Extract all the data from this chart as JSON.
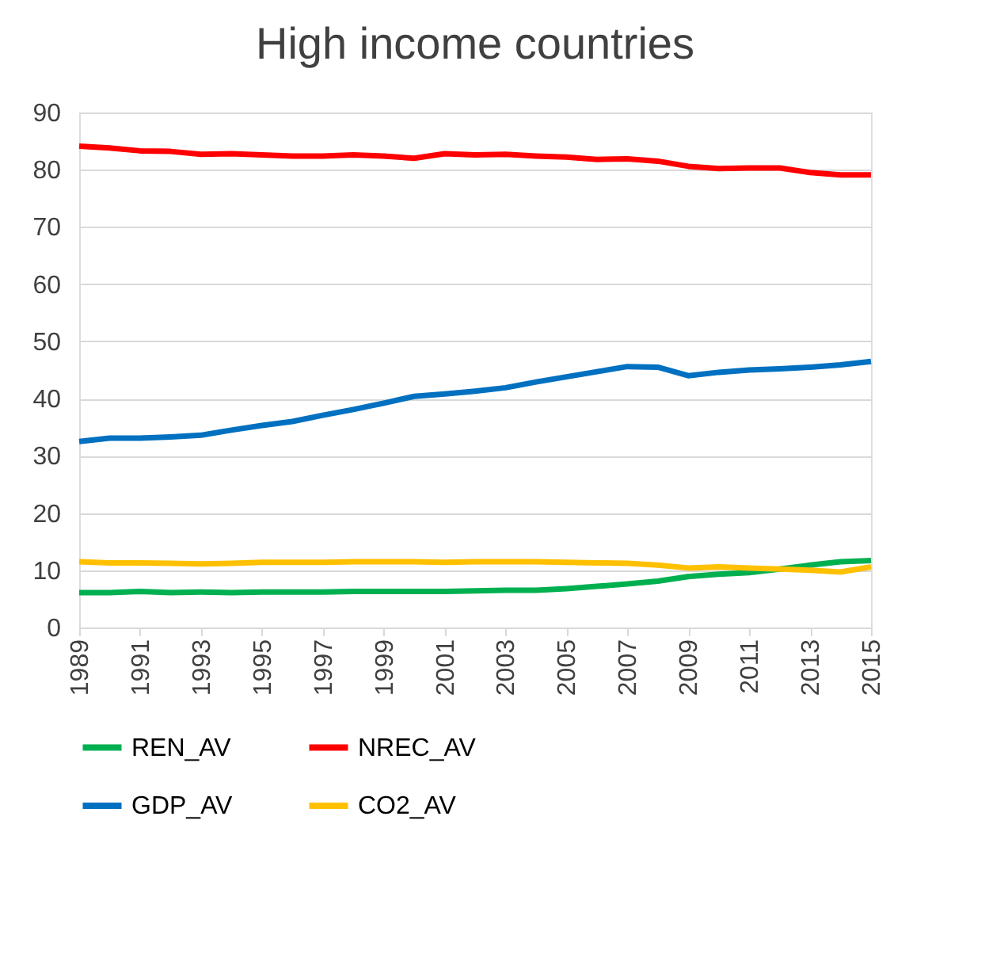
{
  "chart_data": {
    "type": "line",
    "title": "High income countries",
    "x": [
      1989,
      1990,
      1991,
      1992,
      1993,
      1994,
      1995,
      1996,
      1997,
      1998,
      1999,
      2000,
      2001,
      2002,
      2003,
      2004,
      2005,
      2006,
      2007,
      2008,
      2009,
      2010,
      2011,
      2012,
      2013,
      2014,
      2015
    ],
    "series": [
      {
        "name": "REN_AV",
        "color": "#00b050",
        "values": [
          6.1,
          6.1,
          6.3,
          6.1,
          6.2,
          6.1,
          6.2,
          6.2,
          6.2,
          6.3,
          6.3,
          6.3,
          6.3,
          6.4,
          6.5,
          6.5,
          6.8,
          7.2,
          7.6,
          8.1,
          8.9,
          9.3,
          9.6,
          10.2,
          10.9,
          11.5,
          11.7
        ]
      },
      {
        "name": "NREC_AV",
        "color": "#ff0000",
        "values": [
          84.1,
          83.8,
          83.3,
          83.2,
          82.7,
          82.8,
          82.6,
          82.4,
          82.4,
          82.6,
          82.4,
          82.0,
          82.8,
          82.6,
          82.7,
          82.4,
          82.2,
          81.8,
          81.9,
          81.5,
          80.6,
          80.2,
          80.3,
          80.3,
          79.5,
          79.1,
          79.1
        ]
      },
      {
        "name": "GDP_AV",
        "color": "#0070c0",
        "values": [
          32.5,
          33.1,
          33.1,
          33.3,
          33.6,
          34.5,
          35.3,
          36.0,
          37.1,
          38.1,
          39.2,
          40.4,
          40.8,
          41.3,
          41.9,
          42.9,
          43.8,
          44.7,
          45.6,
          45.5,
          44.0,
          44.6,
          45.0,
          45.2,
          45.5,
          45.9,
          46.5
        ]
      },
      {
        "name": "CO2_AV",
        "color": "#ffc000",
        "values": [
          11.5,
          11.3,
          11.3,
          11.2,
          11.1,
          11.2,
          11.4,
          11.4,
          11.4,
          11.5,
          11.5,
          11.5,
          11.4,
          11.5,
          11.5,
          11.5,
          11.4,
          11.3,
          11.2,
          10.9,
          10.4,
          10.6,
          10.4,
          10.2,
          10.0,
          9.7,
          10.6
        ]
      }
    ],
    "xlim": [
      1989,
      2015
    ],
    "xticks": [
      1989,
      1991,
      1993,
      1995,
      1997,
      1999,
      2001,
      2003,
      2005,
      2007,
      2009,
      2011,
      2013,
      2015
    ],
    "ylim": [
      0,
      90
    ],
    "yticks": [
      0,
      10,
      20,
      30,
      40,
      50,
      60,
      70,
      80,
      90
    ],
    "grid": "y",
    "legend": "bottom",
    "marker": "none",
    "line_style": "solid"
  }
}
